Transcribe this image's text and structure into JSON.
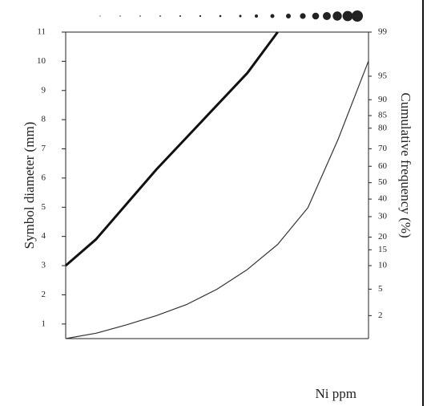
{
  "chart_data": {
    "type": "line",
    "y_label": "Symbol diameter (mm)",
    "y2_label": "Cumulative frequency (%)",
    "x_label": "Ni ppm",
    "categories": [
      null,
      null,
      null,
      null,
      null,
      null,
      null,
      null,
      null,
      null,
      null
    ],
    "series": [
      {
        "name": null,
        "color": "#111",
        "values": [
          3,
          3.9,
          5.1,
          6.3,
          7.4,
          8.5,
          9.6,
          11,
          null,
          null,
          null
        ]
      },
      {
        "name": null,
        "color": "#333",
        "axis": "y2",
        "values": [
          0.8,
          1.0,
          1.4,
          2,
          3,
          5,
          9,
          17,
          35,
          75,
          97
        ]
      }
    ],
    "ylim": [
      0.5,
      11
    ],
    "yticks": [
      1,
      2,
      3,
      4,
      5,
      6,
      7,
      8,
      9,
      10,
      11
    ],
    "y2_scale": "probability",
    "y2lim": [
      0.8,
      99
    ],
    "y2ticks": [
      2,
      5,
      10,
      15,
      20,
      30,
      40,
      50,
      60,
      70,
      80,
      85,
      90,
      95,
      99
    ]
  }
}
